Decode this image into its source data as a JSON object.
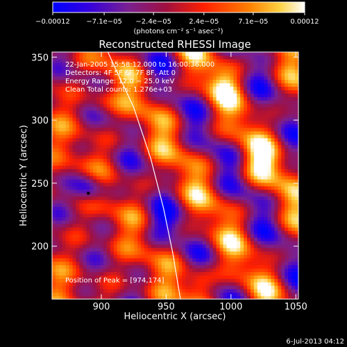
{
  "colorbar": {
    "tick_labels": [
      "−0.00012",
      "−7.1e−05",
      "−2.4e−05",
      "2.4e−05",
      "7.1e−05",
      "0.00012"
    ],
    "tick_values": [
      -0.00012,
      -7.1e-05,
      -2.4e-05,
      2.4e-05,
      7.1e-05,
      0.00012
    ],
    "range": [
      -0.00012,
      0.00012
    ],
    "unit_label": "(photons cm⁻² s⁻¹ asec⁻²)",
    "colors": [
      "#0000ff",
      "#5000c8",
      "#7a2090",
      "#a01040",
      "#ff2000",
      "#ff8000",
      "#ffd040",
      "#ffffff"
    ]
  },
  "chart_data": {
    "type": "heatmap",
    "title": "Reconstructed RHESSI Image",
    "xlabel": "Heliocentric X (arcsec)",
    "ylabel": "Heliocentric Y (arcsec)",
    "xlim": [
      862,
      1052
    ],
    "ylim": [
      158,
      354
    ],
    "x_ticks": [
      900,
      950,
      1000,
      1050
    ],
    "y_ticks": [
      200,
      250,
      300,
      350
    ],
    "annotations": {
      "line1": "22-Jan-2005 15:58:12.000 to 16:00:36.000",
      "line2": "Detectors: 4F 5F 6F 7F 8F, Att 0",
      "line3": "Energy Range: 12.0 − 25.0 keV",
      "line4": "Clean    Total counts: 1.276e+03",
      "peak": "Position of Peak = [974,174]"
    },
    "peak_position": [
      974,
      174
    ],
    "limb_curve": [
      [
        905,
        354
      ],
      [
        925,
        310
      ],
      [
        938,
        270
      ],
      [
        948,
        230
      ],
      [
        955,
        195
      ],
      [
        961,
        158
      ]
    ],
    "min_marker": [
      890,
      242
    ]
  },
  "footer": {
    "date": "6-Jul-2013 04:12"
  }
}
